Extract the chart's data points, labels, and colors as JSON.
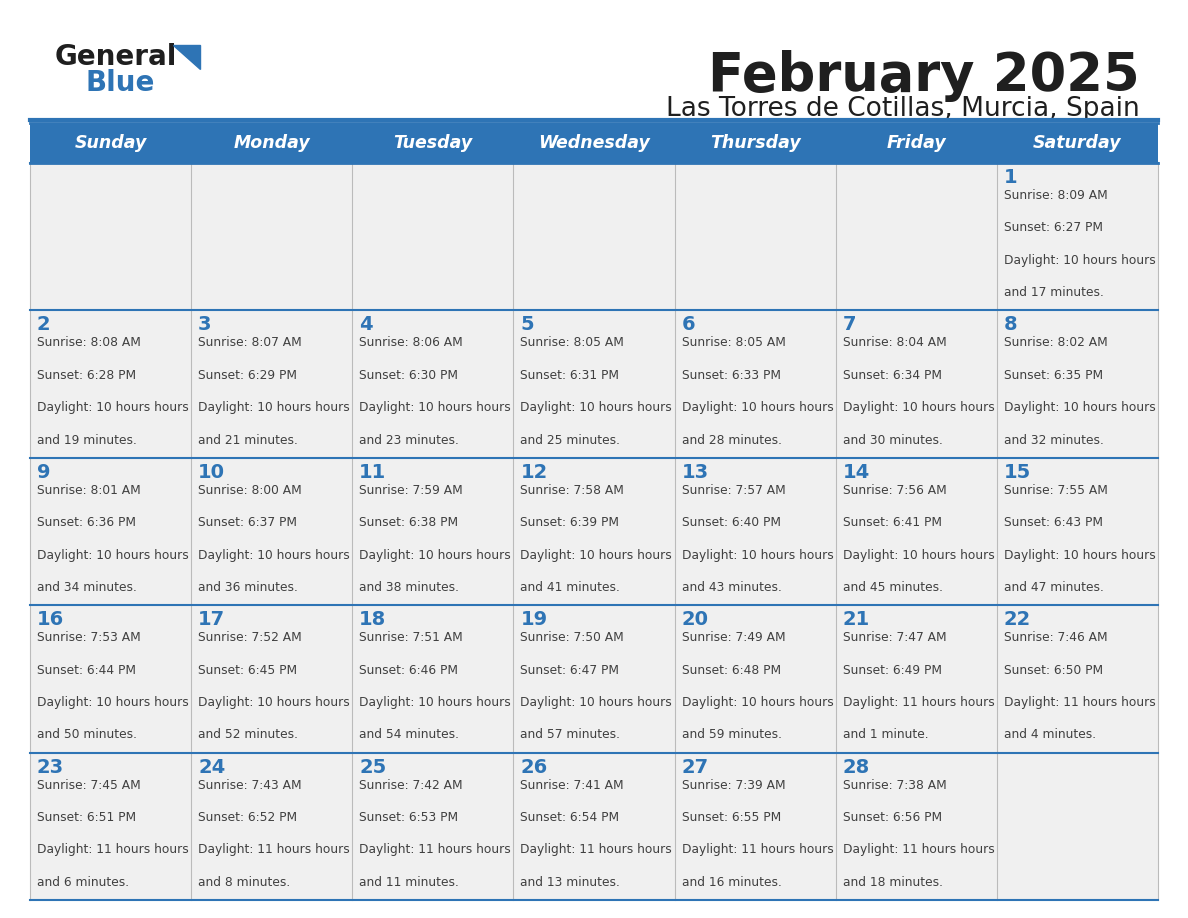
{
  "title": "February 2025",
  "subtitle": "Las Torres de Cotillas, Murcia, Spain",
  "header_bg": "#2E74B5",
  "header_text": "#FFFFFF",
  "cell_bg_light": "#F0F0F0",
  "border_color": "#2E74B5",
  "day_names": [
    "Sunday",
    "Monday",
    "Tuesday",
    "Wednesday",
    "Thursday",
    "Friday",
    "Saturday"
  ],
  "title_color": "#1F1F1F",
  "subtitle_color": "#1F1F1F",
  "day_number_color": "#2E74B5",
  "cell_text_color": "#404040",
  "logo_general_color": "#1F1F1F",
  "logo_blue_color": "#2E74B5",
  "logo_triangle_color": "#2E74B5",
  "days": [
    {
      "day": 1,
      "col": 6,
      "row": 0,
      "sunrise": "8:09 AM",
      "sunset": "6:27 PM",
      "daylight": "10 hours and 17 minutes."
    },
    {
      "day": 2,
      "col": 0,
      "row": 1,
      "sunrise": "8:08 AM",
      "sunset": "6:28 PM",
      "daylight": "10 hours and 19 minutes."
    },
    {
      "day": 3,
      "col": 1,
      "row": 1,
      "sunrise": "8:07 AM",
      "sunset": "6:29 PM",
      "daylight": "10 hours and 21 minutes."
    },
    {
      "day": 4,
      "col": 2,
      "row": 1,
      "sunrise": "8:06 AM",
      "sunset": "6:30 PM",
      "daylight": "10 hours and 23 minutes."
    },
    {
      "day": 5,
      "col": 3,
      "row": 1,
      "sunrise": "8:05 AM",
      "sunset": "6:31 PM",
      "daylight": "10 hours and 25 minutes."
    },
    {
      "day": 6,
      "col": 4,
      "row": 1,
      "sunrise": "8:05 AM",
      "sunset": "6:33 PM",
      "daylight": "10 hours and 28 minutes."
    },
    {
      "day": 7,
      "col": 5,
      "row": 1,
      "sunrise": "8:04 AM",
      "sunset": "6:34 PM",
      "daylight": "10 hours and 30 minutes."
    },
    {
      "day": 8,
      "col": 6,
      "row": 1,
      "sunrise": "8:02 AM",
      "sunset": "6:35 PM",
      "daylight": "10 hours and 32 minutes."
    },
    {
      "day": 9,
      "col": 0,
      "row": 2,
      "sunrise": "8:01 AM",
      "sunset": "6:36 PM",
      "daylight": "10 hours and 34 minutes."
    },
    {
      "day": 10,
      "col": 1,
      "row": 2,
      "sunrise": "8:00 AM",
      "sunset": "6:37 PM",
      "daylight": "10 hours and 36 minutes."
    },
    {
      "day": 11,
      "col": 2,
      "row": 2,
      "sunrise": "7:59 AM",
      "sunset": "6:38 PM",
      "daylight": "10 hours and 38 minutes."
    },
    {
      "day": 12,
      "col": 3,
      "row": 2,
      "sunrise": "7:58 AM",
      "sunset": "6:39 PM",
      "daylight": "10 hours and 41 minutes."
    },
    {
      "day": 13,
      "col": 4,
      "row": 2,
      "sunrise": "7:57 AM",
      "sunset": "6:40 PM",
      "daylight": "10 hours and 43 minutes."
    },
    {
      "day": 14,
      "col": 5,
      "row": 2,
      "sunrise": "7:56 AM",
      "sunset": "6:41 PM",
      "daylight": "10 hours and 45 minutes."
    },
    {
      "day": 15,
      "col": 6,
      "row": 2,
      "sunrise": "7:55 AM",
      "sunset": "6:43 PM",
      "daylight": "10 hours and 47 minutes."
    },
    {
      "day": 16,
      "col": 0,
      "row": 3,
      "sunrise": "7:53 AM",
      "sunset": "6:44 PM",
      "daylight": "10 hours and 50 minutes."
    },
    {
      "day": 17,
      "col": 1,
      "row": 3,
      "sunrise": "7:52 AM",
      "sunset": "6:45 PM",
      "daylight": "10 hours and 52 minutes."
    },
    {
      "day": 18,
      "col": 2,
      "row": 3,
      "sunrise": "7:51 AM",
      "sunset": "6:46 PM",
      "daylight": "10 hours and 54 minutes."
    },
    {
      "day": 19,
      "col": 3,
      "row": 3,
      "sunrise": "7:50 AM",
      "sunset": "6:47 PM",
      "daylight": "10 hours and 57 minutes."
    },
    {
      "day": 20,
      "col": 4,
      "row": 3,
      "sunrise": "7:49 AM",
      "sunset": "6:48 PM",
      "daylight": "10 hours and 59 minutes."
    },
    {
      "day": 21,
      "col": 5,
      "row": 3,
      "sunrise": "7:47 AM",
      "sunset": "6:49 PM",
      "daylight": "11 hours and 1 minute."
    },
    {
      "day": 22,
      "col": 6,
      "row": 3,
      "sunrise": "7:46 AM",
      "sunset": "6:50 PM",
      "daylight": "11 hours and 4 minutes."
    },
    {
      "day": 23,
      "col": 0,
      "row": 4,
      "sunrise": "7:45 AM",
      "sunset": "6:51 PM",
      "daylight": "11 hours and 6 minutes."
    },
    {
      "day": 24,
      "col": 1,
      "row": 4,
      "sunrise": "7:43 AM",
      "sunset": "6:52 PM",
      "daylight": "11 hours and 8 minutes."
    },
    {
      "day": 25,
      "col": 2,
      "row": 4,
      "sunrise": "7:42 AM",
      "sunset": "6:53 PM",
      "daylight": "11 hours and 11 minutes."
    },
    {
      "day": 26,
      "col": 3,
      "row": 4,
      "sunrise": "7:41 AM",
      "sunset": "6:54 PM",
      "daylight": "11 hours and 13 minutes."
    },
    {
      "day": 27,
      "col": 4,
      "row": 4,
      "sunrise": "7:39 AM",
      "sunset": "6:55 PM",
      "daylight": "11 hours and 16 minutes."
    },
    {
      "day": 28,
      "col": 5,
      "row": 4,
      "sunrise": "7:38 AM",
      "sunset": "6:56 PM",
      "daylight": "11 hours and 18 minutes."
    }
  ]
}
